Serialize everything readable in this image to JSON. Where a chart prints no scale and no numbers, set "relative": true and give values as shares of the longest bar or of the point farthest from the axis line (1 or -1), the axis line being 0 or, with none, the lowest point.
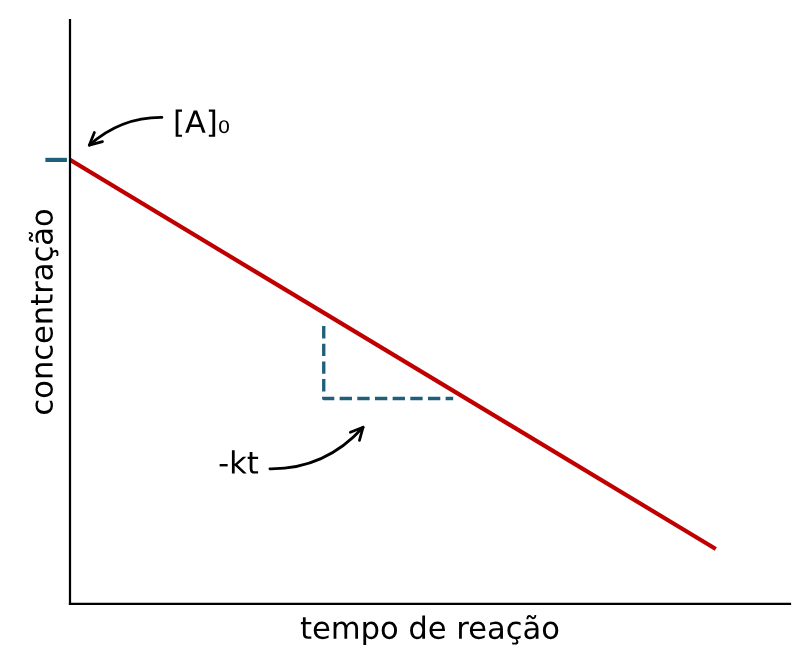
{
  "chart_data": {
    "type": "line",
    "relative": true,
    "xlabel": "tempo de reação",
    "ylabel": "concentração",
    "categories": [
      null,
      null
    ],
    "series": [
      {
        "color": "#c00000",
        "values": [
          1,
          0.126
        ]
      }
    ],
    "annotations": [
      "[A]₀",
      "-kt"
    ],
    "legend": false,
    "marker": "none",
    "line_style": "solid"
  }
}
